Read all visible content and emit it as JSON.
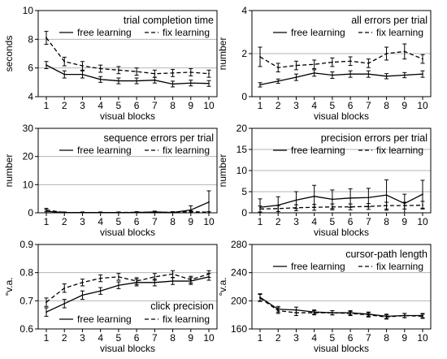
{
  "chart_data": [
    {
      "type": "line",
      "title": "trial completion time",
      "xlabel": "visual blocks",
      "ylabel": "seconds",
      "x": [
        1,
        2,
        3,
        4,
        5,
        6,
        7,
        8,
        9,
        10
      ],
      "ylim": [
        4,
        10
      ],
      "yticks": [
        4,
        6,
        8,
        10
      ],
      "grid": true,
      "legend": "top-right",
      "series": [
        {
          "name": "free learning",
          "style": "solid",
          "values": [
            6.2,
            5.55,
            5.55,
            5.2,
            5.1,
            5.1,
            5.15,
            4.88,
            4.95,
            4.92
          ],
          "errors": [
            0.25,
            0.25,
            0.25,
            0.2,
            0.2,
            0.2,
            0.2,
            0.2,
            0.2,
            0.2
          ]
        },
        {
          "name": "fix learning",
          "style": "dashed",
          "values": [
            8.1,
            6.45,
            6.15,
            5.95,
            5.85,
            5.75,
            5.6,
            5.65,
            5.7,
            5.6
          ],
          "errors": [
            0.45,
            0.3,
            0.3,
            0.25,
            0.25,
            0.25,
            0.25,
            0.25,
            0.25,
            0.25
          ]
        }
      ]
    },
    {
      "type": "line",
      "title": "all errors per trial",
      "xlabel": "visual blocks",
      "ylabel": "number",
      "x": [
        1,
        2,
        3,
        4,
        5,
        6,
        7,
        8,
        9,
        10
      ],
      "ylim": [
        0,
        4
      ],
      "yticks": [
        0,
        2,
        4
      ],
      "grid": true,
      "legend": "top-right",
      "series": [
        {
          "name": "free learning",
          "style": "solid",
          "values": [
            0.55,
            0.72,
            0.9,
            1.1,
            1.0,
            1.05,
            1.05,
            0.95,
            1.0,
            1.05
          ],
          "errors": [
            0.1,
            0.1,
            0.15,
            0.15,
            0.15,
            0.15,
            0.15,
            0.12,
            0.12,
            0.15
          ]
        },
        {
          "name": "fix learning",
          "style": "dashed",
          "values": [
            1.85,
            1.35,
            1.45,
            1.5,
            1.6,
            1.65,
            1.55,
            2.0,
            2.1,
            1.75
          ],
          "errors": [
            0.45,
            0.2,
            0.2,
            0.2,
            0.2,
            0.2,
            0.2,
            0.3,
            0.35,
            0.2
          ]
        }
      ]
    },
    {
      "type": "line",
      "title": "sequence errors per trial",
      "xlabel": "visual blocks",
      "ylabel": "number",
      "x": [
        1,
        2,
        3,
        4,
        5,
        6,
        7,
        8,
        9,
        10
      ],
      "ylim": [
        0,
        30
      ],
      "yticks": [
        0,
        10,
        20,
        30
      ],
      "grid": true,
      "legend": "top-right",
      "series": [
        {
          "name": "free learning",
          "style": "solid",
          "values": [
            0.5,
            0.1,
            0.1,
            0.1,
            0.1,
            0.1,
            0.3,
            0.1,
            1.0,
            3.8
          ],
          "errors": [
            0.6,
            0.2,
            0.2,
            0.2,
            0.2,
            0.2,
            0.3,
            0.2,
            1.5,
            4.0
          ]
        },
        {
          "name": "fix learning",
          "style": "dashed",
          "values": [
            1.0,
            0.1,
            0.1,
            0.1,
            0.1,
            0.2,
            0.1,
            0.2,
            0.4,
            0.2
          ],
          "errors": [
            0.6,
            0.2,
            0.2,
            0.2,
            0.2,
            0.2,
            0.2,
            0.2,
            0.3,
            0.2
          ]
        }
      ]
    },
    {
      "type": "line",
      "title": "precision errors per trial",
      "xlabel": "visual blocks",
      "ylabel": "number",
      "x": [
        1,
        2,
        3,
        4,
        5,
        6,
        7,
        8,
        9,
        10
      ],
      "ylim": [
        0,
        20
      ],
      "yticks": [
        0,
        5,
        10,
        15,
        20
      ],
      "grid": true,
      "legend": "top-right",
      "series": [
        {
          "name": "free learning",
          "style": "solid",
          "values": [
            1.3,
            1.8,
            3.0,
            3.9,
            3.2,
            3.5,
            3.6,
            4.2,
            2.2,
            4.4
          ],
          "errors": [
            2.0,
            2.0,
            2.0,
            2.6,
            2.2,
            2.2,
            2.2,
            3.6,
            2.2,
            3.3
          ]
        },
        {
          "name": "fix learning",
          "style": "dashed",
          "values": [
            0.9,
            1.0,
            1.2,
            1.3,
            1.4,
            1.4,
            1.5,
            1.7,
            1.7,
            1.8
          ],
          "errors": [
            0.7,
            0.7,
            0.7,
            0.7,
            0.7,
            0.7,
            0.7,
            0.8,
            0.8,
            0.9
          ]
        }
      ]
    },
    {
      "type": "line",
      "title": "click precision",
      "xlabel": "visual blocks",
      "ylabel": "°v.a.",
      "x": [
        1,
        2,
        3,
        4,
        5,
        6,
        7,
        8,
        9,
        10
      ],
      "ylim": [
        0.6,
        0.9
      ],
      "yticks": [
        0.6,
        0.7,
        0.8,
        0.9
      ],
      "grid": true,
      "legend": "bottom-right",
      "series": [
        {
          "name": "free learning",
          "style": "solid",
          "values": [
            0.66,
            0.69,
            0.72,
            0.735,
            0.755,
            0.765,
            0.765,
            0.77,
            0.77,
            0.785
          ],
          "errors": [
            0.015,
            0.015,
            0.015,
            0.012,
            0.012,
            0.012,
            0.012,
            0.012,
            0.012,
            0.012
          ]
        },
        {
          "name": "fix learning",
          "style": "dashed",
          "values": [
            0.695,
            0.745,
            0.765,
            0.78,
            0.785,
            0.77,
            0.785,
            0.795,
            0.775,
            0.795
          ],
          "errors": [
            0.015,
            0.015,
            0.012,
            0.012,
            0.012,
            0.012,
            0.012,
            0.012,
            0.012,
            0.012
          ]
        }
      ]
    },
    {
      "type": "line",
      "title": "cursor-path length",
      "xlabel": "visual blocks",
      "ylabel": "°v.a.",
      "x": [
        1,
        2,
        3,
        4,
        5,
        6,
        7,
        8,
        9,
        10
      ],
      "ylim": [
        160,
        280
      ],
      "yticks": [
        160,
        200,
        240,
        280
      ],
      "grid": true,
      "legend": "top-right",
      "series": [
        {
          "name": "free learning",
          "style": "solid",
          "values": [
            205,
            188,
            187,
            184,
            183,
            183,
            181,
            178,
            179,
            179
          ],
          "errors": [
            5,
            4,
            4,
            3,
            3,
            3,
            3,
            3,
            3,
            3
          ]
        },
        {
          "name": "fix learning",
          "style": "dashed",
          "values": [
            204,
            186,
            183,
            183,
            183,
            182,
            180,
            177,
            179,
            178
          ],
          "errors": [
            5,
            4,
            4,
            3,
            3,
            3,
            3,
            3,
            3,
            3
          ]
        }
      ]
    }
  ]
}
